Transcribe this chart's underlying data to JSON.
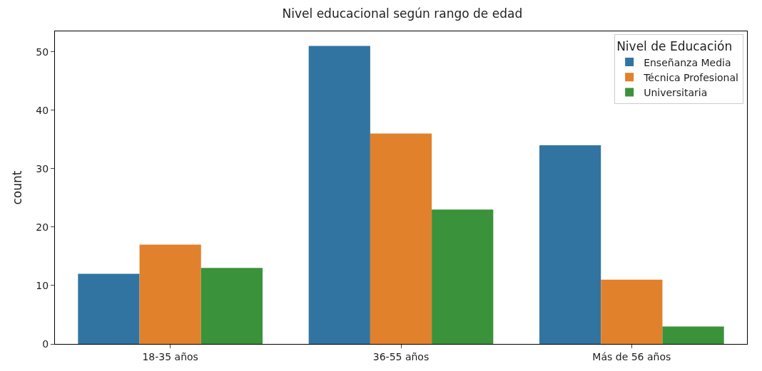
{
  "chart_data": {
    "type": "bar",
    "title": "Nivel educacional según rango de edad",
    "ylabel": "count",
    "legend_title": "Nivel de Educación",
    "categories": [
      "18-35 años",
      "36-55 años",
      "Más de 56 años"
    ],
    "series": [
      {
        "name": "Enseñanza Media",
        "color": "#3274a1",
        "values": [
          12,
          51,
          34
        ]
      },
      {
        "name": "Técnica Profesional",
        "color": "#e1812c",
        "values": [
          17,
          36,
          11
        ]
      },
      {
        "name": "Universitaria",
        "color": "#3a923a",
        "values": [
          13,
          23,
          3
        ]
      }
    ],
    "ylim": [
      0,
      53.5
    ],
    "yticks": [
      0,
      10,
      20,
      30,
      40,
      50
    ],
    "grid": false,
    "legend": "top right"
  }
}
